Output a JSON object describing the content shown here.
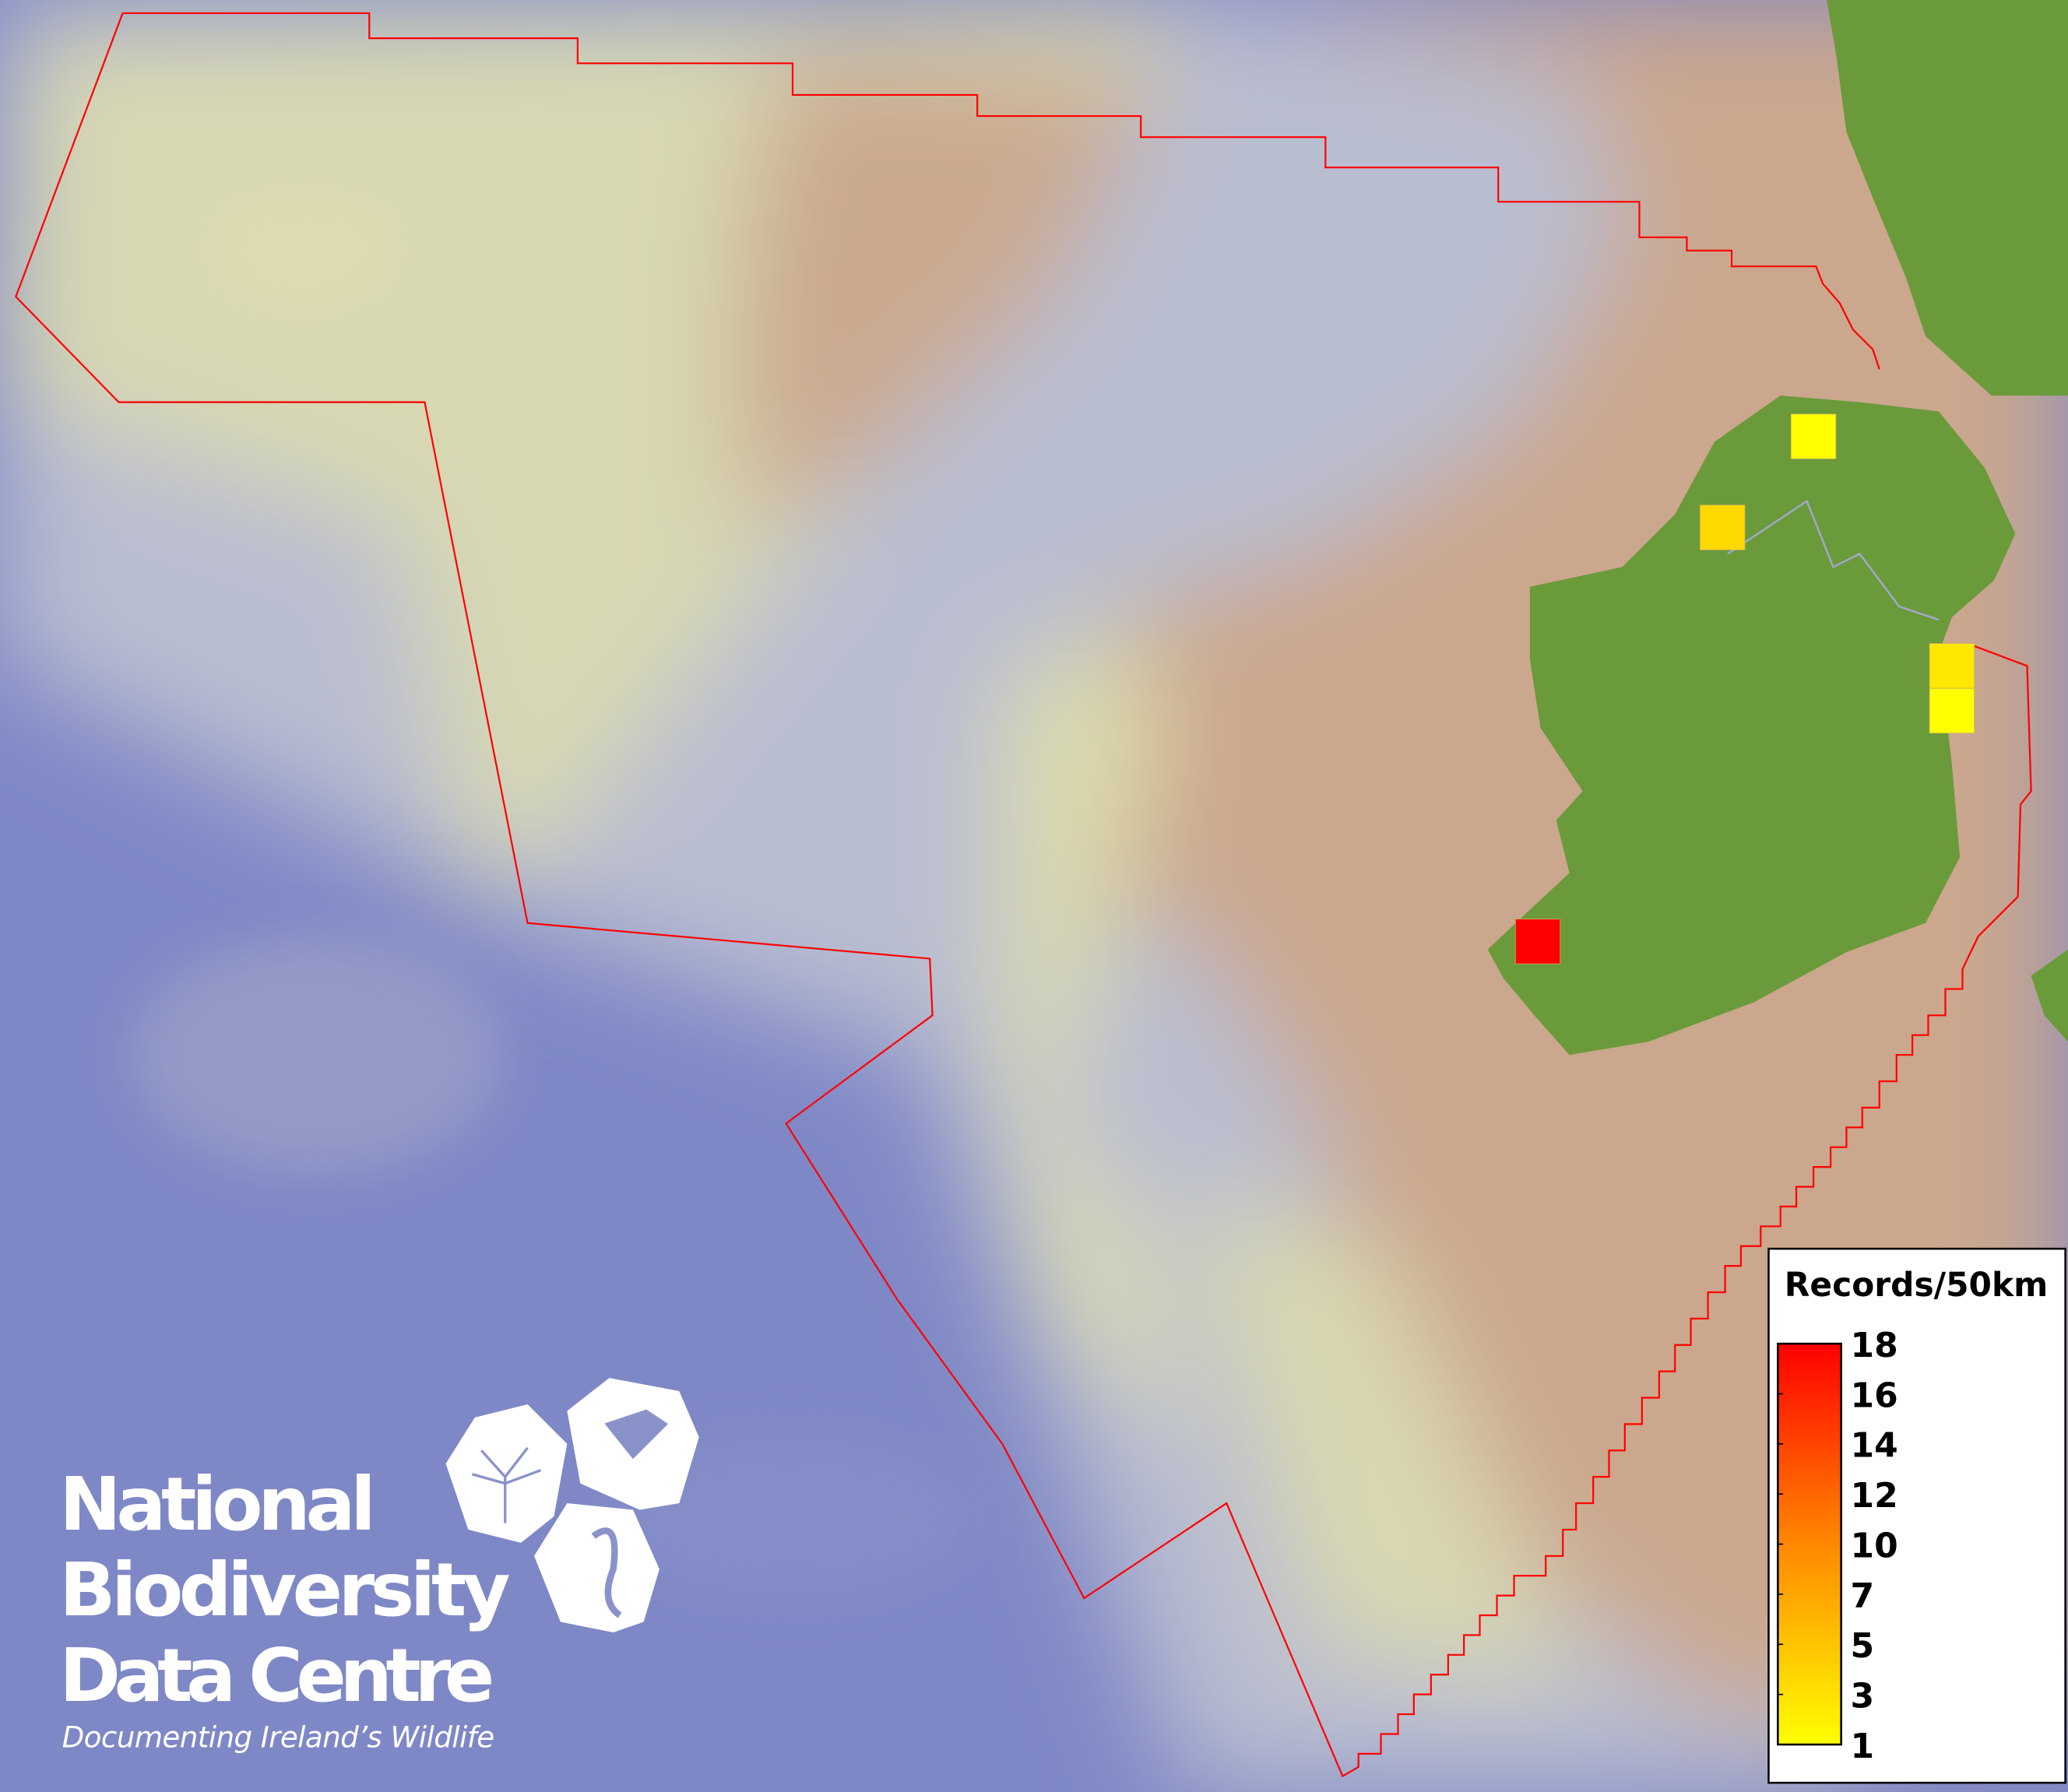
{
  "map": {
    "boundary_color": "#ff0000",
    "land_color": "#6a9a3a",
    "deep_sea_color": "#7f88c6",
    "shelf_color": "#d9d8ae",
    "plateau_color": "#c9a68c",
    "grid_cells": [
      {
        "records": 1,
        "color": "#ffff00"
      },
      {
        "records": 3,
        "color": "#ffd800"
      },
      {
        "records": 2,
        "color": "#ffe800"
      },
      {
        "records": 1,
        "color": "#ffff00"
      },
      {
        "records": 18,
        "color": "#ff0000"
      }
    ]
  },
  "legend": {
    "title": "Records/50km",
    "ticks": [
      "18",
      "16",
      "14",
      "12",
      "10",
      "7",
      "5",
      "3",
      "1"
    ],
    "color_high": "#ff0000",
    "color_mid": "#ff8800",
    "color_low": "#ffff00"
  },
  "logo": {
    "line1": "National",
    "line2": "Biodiversity",
    "line3": "Data Centre",
    "tagline": "Documenting Ireland’s Wildlife",
    "icons": [
      "tree-icon",
      "butterfly-icon",
      "seahorse-icon"
    ]
  }
}
